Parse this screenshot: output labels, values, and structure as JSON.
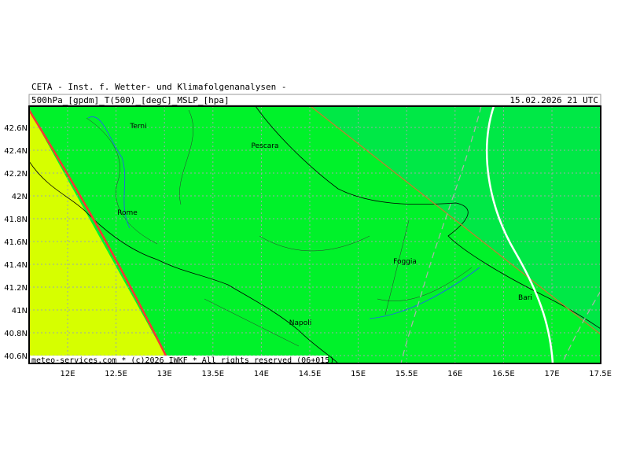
{
  "header": {
    "title": "CETA - Inst. f. Wetter- und Klimafolgenanalysen -",
    "fields": "500hPa_[gpdm]_T(500)_[degC]_MSLP_[hpa]",
    "valid": "15.02.2026 21 UTC"
  },
  "lat_labels": [
    "42.6N",
    "42.4N",
    "42.2N",
    "42N",
    "41.8N",
    "41.6N",
    "41.4N",
    "41.2N",
    "41N",
    "40.8N",
    "40.6N"
  ],
  "lon_labels": [
    "12E",
    "12.5E",
    "13E",
    "13.5E",
    "14E",
    "14.5E",
    "15E",
    "15.5E",
    "16E",
    "16.5E",
    "17E",
    "17.5E"
  ],
  "cities": [
    "Terni",
    "Pescara",
    "Rome",
    "Foggia",
    "Bari",
    "Napoli"
  ],
  "footer": "meteo-services.com * (c)2026 IWKF * All rights reserved (06+015)"
}
